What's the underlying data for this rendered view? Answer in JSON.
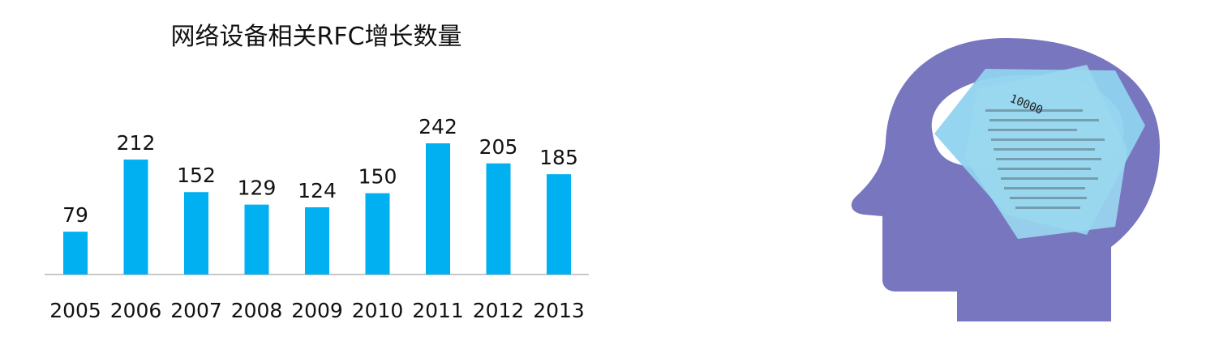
{
  "chart_data": {
    "type": "bar",
    "title": "网络设备相关RFC增长数量",
    "categories": [
      "2005",
      "2006",
      "2007",
      "2008",
      "2009",
      "2010",
      "2011",
      "2012",
      "2013"
    ],
    "values": [
      79,
      212,
      152,
      129,
      124,
      150,
      242,
      205,
      185
    ],
    "ylim": [
      0,
      300
    ],
    "grid": false,
    "bar_color": "#00b0f0"
  },
  "illustration": {
    "icon": "head-with-documents-icon",
    "document_label": "10000",
    "head_color": "#7876be",
    "paper_color": "#8fd3ee"
  }
}
